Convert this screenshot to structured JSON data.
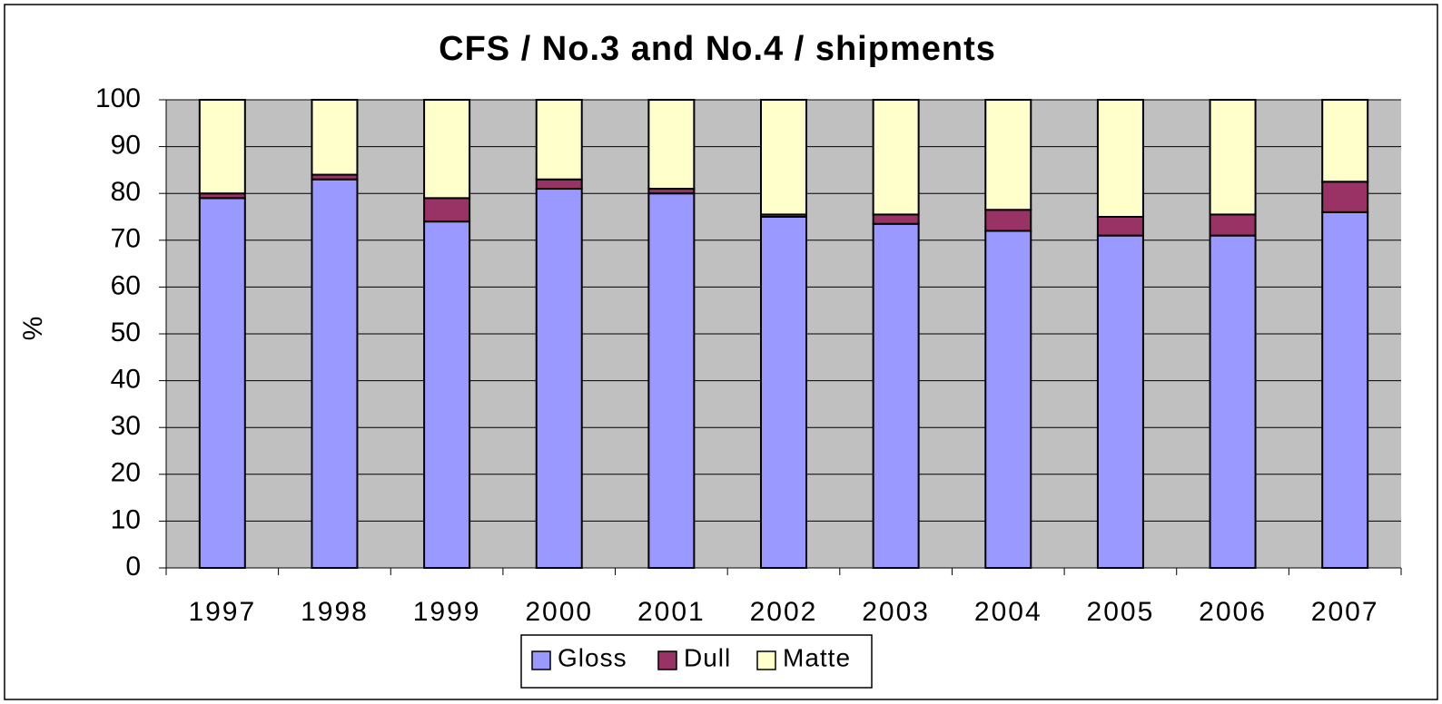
{
  "chart_data": {
    "type": "stacked_bar",
    "title": "CFS / No.3 and No.4 / shipments",
    "y_label": "%",
    "categories": [
      "1997",
      "1998",
      "1999",
      "2000",
      "2001",
      "2002",
      "2003",
      "2004",
      "2005",
      "2006",
      "2007"
    ],
    "series": [
      {
        "name": "Gloss",
        "color": "#9999ff",
        "values": [
          79,
          83,
          74,
          81,
          80,
          75,
          73.5,
          72,
          71,
          71,
          76
        ]
      },
      {
        "name": "Dull",
        "color": "#993366",
        "values": [
          1,
          1,
          5,
          2,
          1,
          0.5,
          2,
          4.5,
          4,
          4.5,
          6.5
        ]
      },
      {
        "name": "Matte",
        "color": "#ffffcc",
        "values": [
          20,
          16,
          21,
          17,
          19,
          24.5,
          24.5,
          23.5,
          25,
          24.5,
          17.5
        ]
      }
    ],
    "ylim": [
      0,
      100
    ],
    "yticks": [
      0,
      10,
      20,
      30,
      40,
      50,
      60,
      70,
      80,
      90,
      100
    ],
    "grid": true
  }
}
